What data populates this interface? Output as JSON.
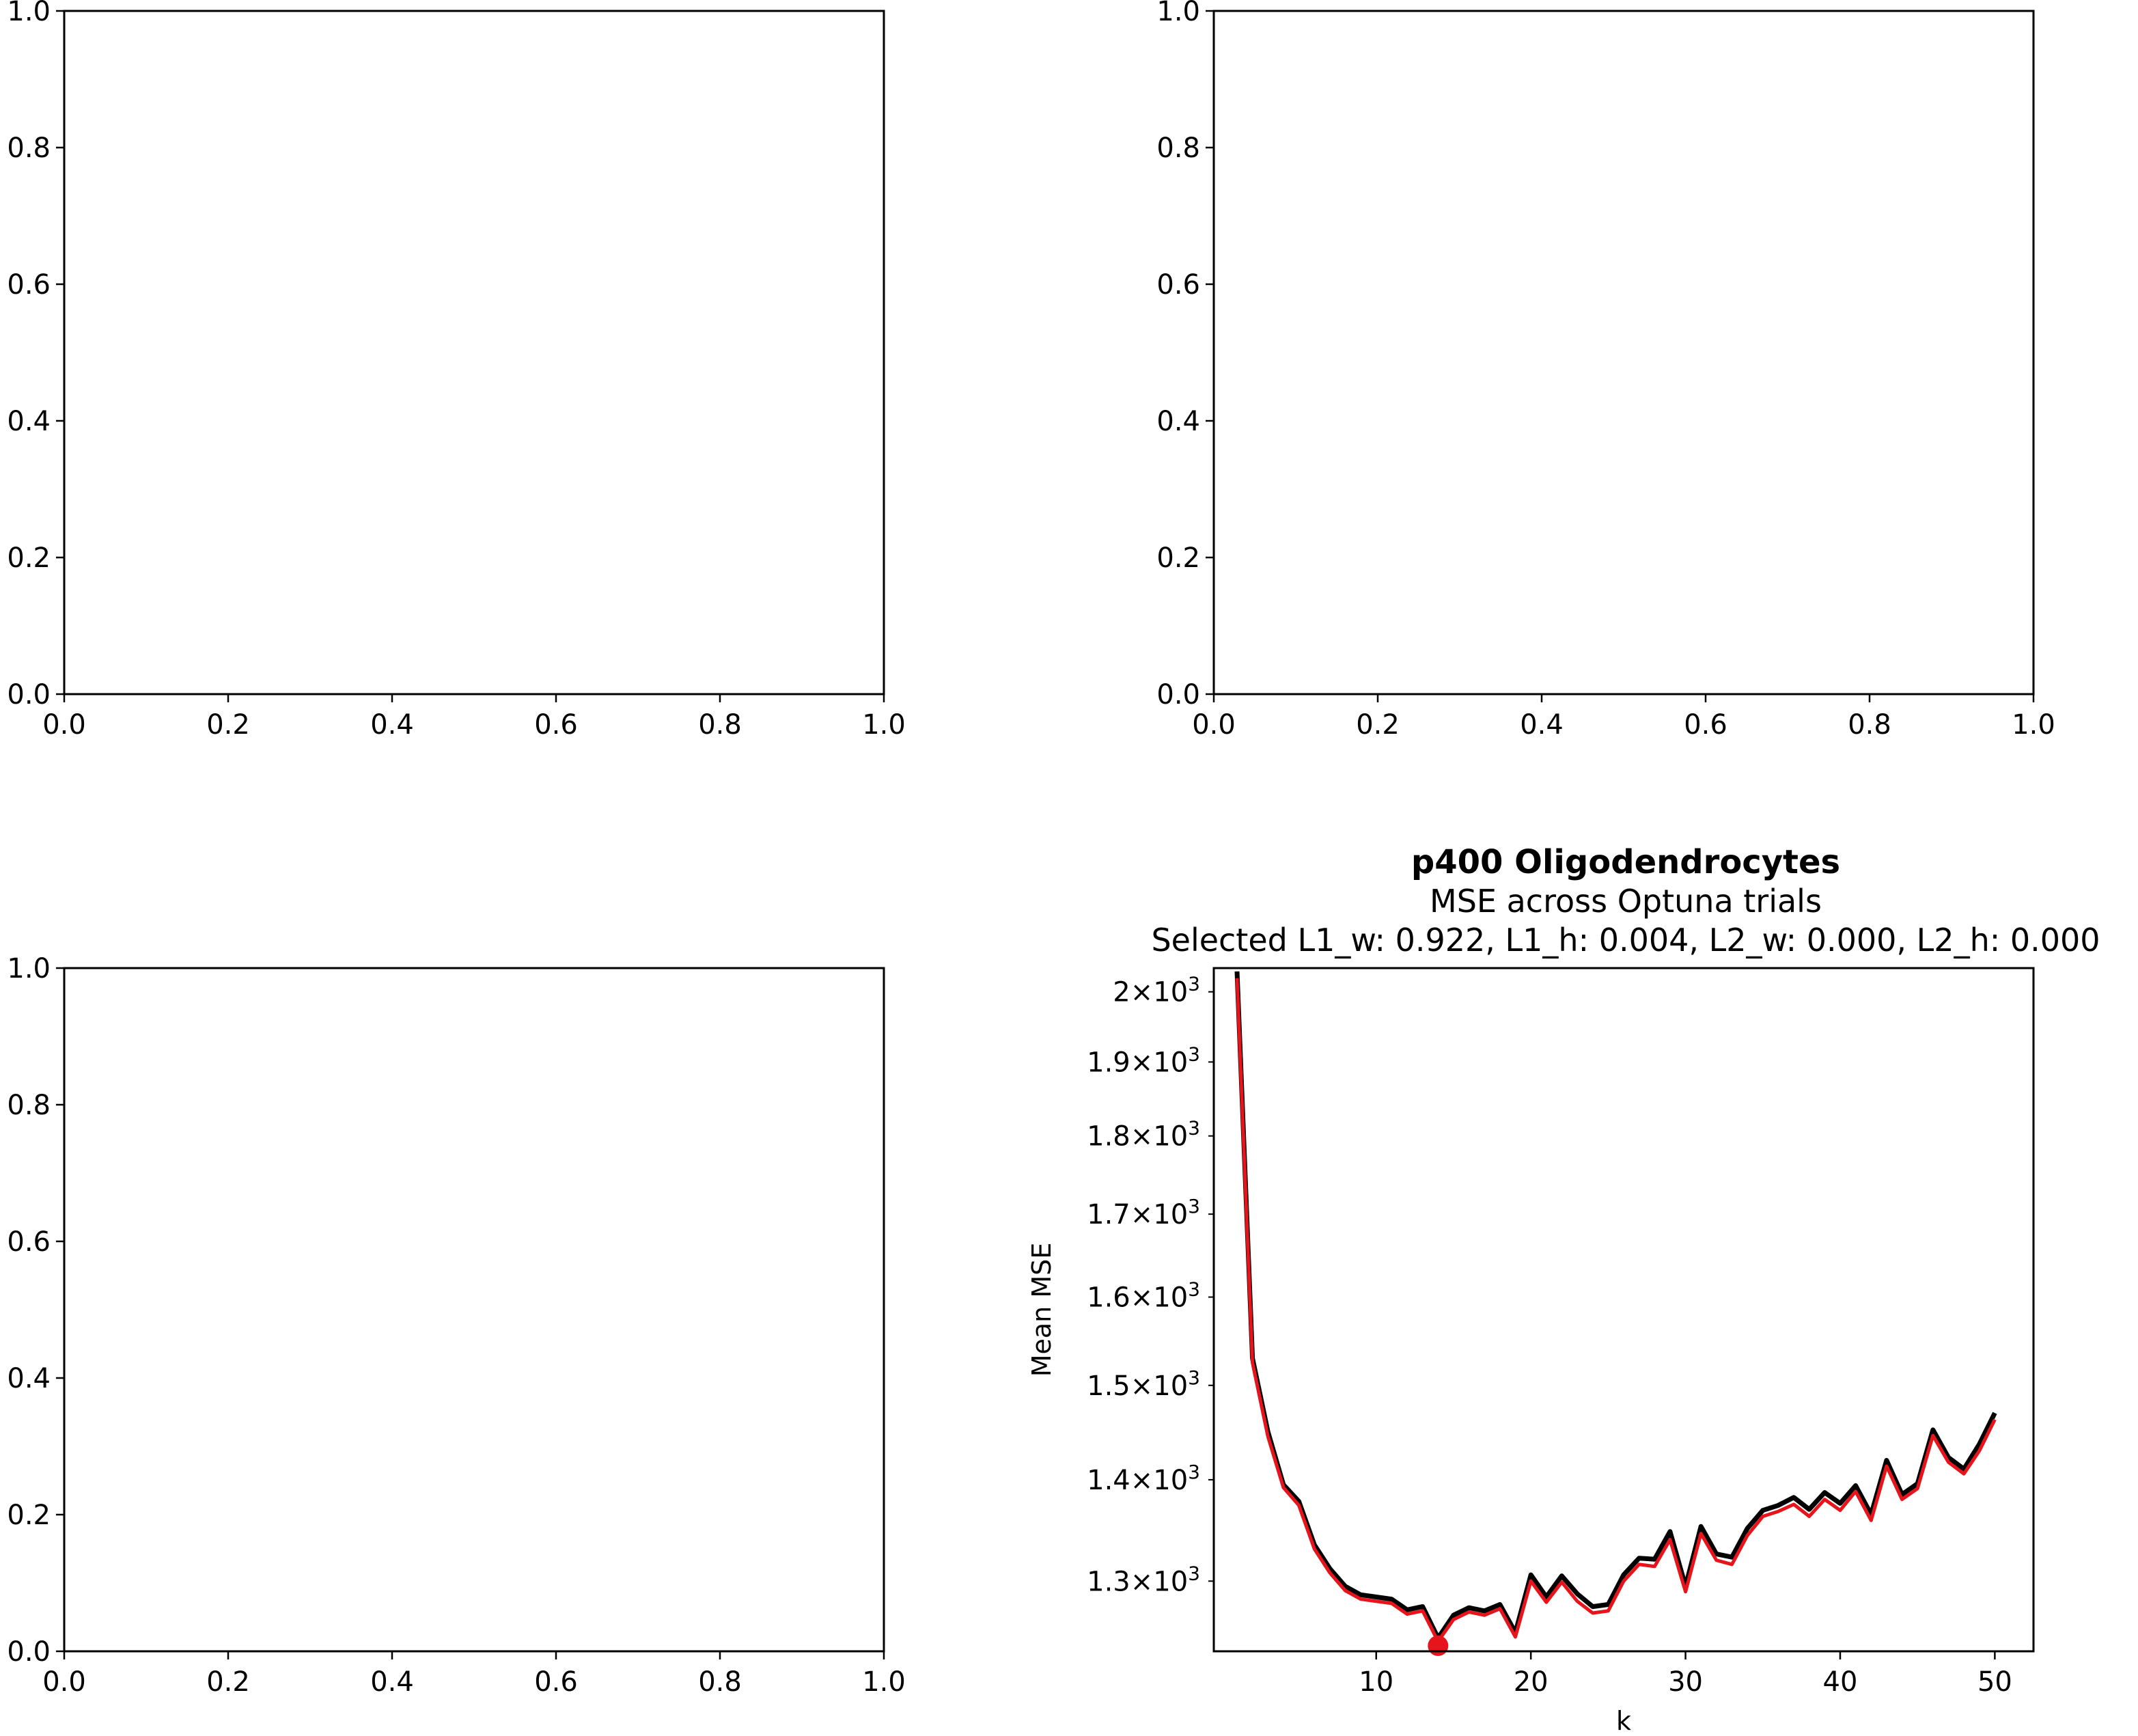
{
  "figure": {
    "empty_axes": {
      "x_ticks": [
        "0.0",
        "0.2",
        "0.4",
        "0.6",
        "0.8",
        "1.0"
      ],
      "y_ticks": [
        "0.0",
        "0.2",
        "0.4",
        "0.6",
        "0.8",
        "1.0"
      ]
    }
  },
  "chart_data": [
    {
      "type": "line",
      "panel": "top-left",
      "empty": true,
      "xlim": [
        0,
        1
      ],
      "ylim": [
        0,
        1
      ]
    },
    {
      "type": "line",
      "panel": "top-right",
      "empty": true,
      "xlim": [
        0,
        1
      ],
      "ylim": [
        0,
        1
      ]
    },
    {
      "type": "line",
      "panel": "bottom-left",
      "empty": true,
      "xlim": [
        0,
        1
      ],
      "ylim": [
        0,
        1
      ]
    },
    {
      "type": "line",
      "panel": "bottom-right",
      "title": "p400 Oligodendrocytes",
      "subtitle": "MSE across Optuna trials",
      "subtitle2": "Selected L1_w: 0.922, L1_h: 0.004, L2_w: 0.000, L2_h: 0.000",
      "xlabel": "k",
      "ylabel": "Mean MSE",
      "xlim": [
        -0.5,
        52.5
      ],
      "ylim": [
        1235,
        2035
      ],
      "y_scale": "log",
      "x_ticks": [
        {
          "v": 10,
          "label": "10"
        },
        {
          "v": 20,
          "label": "20"
        },
        {
          "v": 30,
          "label": "30"
        },
        {
          "v": 40,
          "label": "40"
        },
        {
          "v": 50,
          "label": "50"
        }
      ],
      "y_ticks": [
        {
          "v": 1300,
          "base": "1.3",
          "exp": "3"
        },
        {
          "v": 1400,
          "base": "1.4",
          "exp": "3"
        },
        {
          "v": 1500,
          "base": "1.5",
          "exp": "3"
        },
        {
          "v": 1600,
          "base": "1.6",
          "exp": "3"
        },
        {
          "v": 1700,
          "base": "1.7",
          "exp": "3"
        },
        {
          "v": 1800,
          "base": "1.8",
          "exp": "3"
        },
        {
          "v": 1900,
          "base": "1.9",
          "exp": "3"
        },
        {
          "v": 2000,
          "base": "2",
          "exp": "3"
        }
      ],
      "x": [
        1,
        2,
        3,
        4,
        5,
        6,
        7,
        8,
        9,
        10,
        11,
        12,
        13,
        14,
        15,
        16,
        17,
        18,
        19,
        20,
        21,
        22,
        23,
        24,
        25,
        26,
        27,
        28,
        29,
        30,
        31,
        32,
        33,
        34,
        35,
        36,
        37,
        38,
        39,
        40,
        41,
        42,
        43,
        44,
        45,
        46,
        47,
        48,
        49,
        50
      ],
      "series": [
        {
          "color": "#000000",
          "values": [
            2030,
            1530,
            1450,
            1395,
            1378,
            1335,
            1312,
            1295,
            1287,
            1285,
            1283,
            1273,
            1276,
            1247,
            1268,
            1275,
            1272,
            1278,
            1252,
            1306,
            1285,
            1305,
            1288,
            1276,
            1278,
            1306,
            1322,
            1321,
            1348,
            1295,
            1353,
            1326,
            1323,
            1351,
            1369,
            1374,
            1382,
            1370,
            1387,
            1376,
            1394,
            1365,
            1420,
            1385,
            1396,
            1452,
            1423,
            1411,
            1437,
            1470
          ]
        },
        {
          "color": "#e8141b",
          "values": [
            2020,
            1525,
            1445,
            1392,
            1374,
            1331,
            1308,
            1291,
            1283,
            1281,
            1279,
            1269,
            1272,
            1244,
            1264,
            1271,
            1268,
            1274,
            1248,
            1300,
            1280,
            1299,
            1281,
            1270,
            1272,
            1300,
            1316,
            1314,
            1340,
            1290,
            1346,
            1320,
            1316,
            1344,
            1363,
            1368,
            1375,
            1363,
            1380,
            1369,
            1388,
            1359,
            1414,
            1380,
            1391,
            1446,
            1418,
            1406,
            1430,
            1463
          ]
        }
      ],
      "selected_point": {
        "x": 14,
        "y": 1240,
        "color": "#e8141b"
      }
    }
  ]
}
